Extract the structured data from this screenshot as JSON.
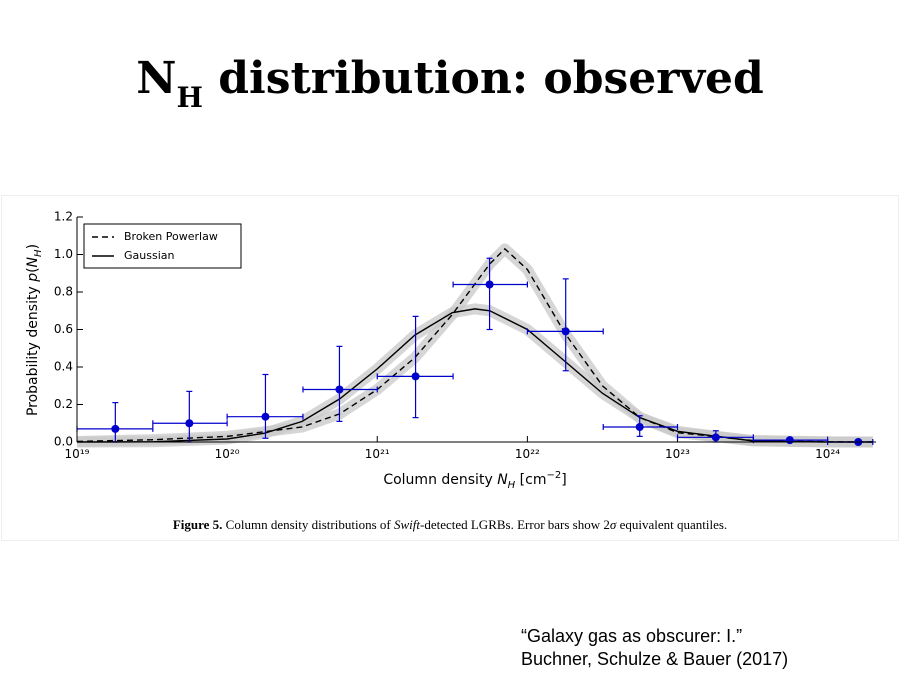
{
  "slide": {
    "title": [
      "N",
      "H",
      " distribution: observed"
    ],
    "citation": [
      "“Galaxy gas as obscurer: I.”",
      "Buchner, Schulze & Bauer (2017)"
    ],
    "caption": [
      "Figure 5.",
      " Column density distributions of ",
      "Swift",
      "-detected LGRBs. Error bars show 2",
      "σ",
      " equivalent quantiles."
    ]
  },
  "chart_data": {
    "type": "line",
    "xscale": "log",
    "xlabel": [
      "Column density ",
      "N",
      "H",
      " [cm",
      "−2",
      "]"
    ],
    "ylabel": [
      "Probability density ",
      "p",
      "(",
      "N",
      "H",
      ")"
    ],
    "xlim": [
      1e+19,
      2.1e+24
    ],
    "xticks": [
      {
        "value": 1e+19,
        "label": "10¹⁹"
      },
      {
        "value": 1e+20,
        "label": "10²⁰"
      },
      {
        "value": 1e+21,
        "label": "10²¹"
      },
      {
        "value": 1e+22,
        "label": "10²²"
      },
      {
        "value": 1e+23,
        "label": "10²³"
      },
      {
        "value": 1e+24,
        "label": "10²⁴"
      }
    ],
    "ylim": [
      0,
      1.2
    ],
    "yticks": [
      {
        "value": 0,
        "label": "0.0"
      },
      0.2,
      0.4,
      0.6,
      0.8,
      {
        "value": 1,
        "label": "1.0"
      },
      1.2
    ],
    "legend": "upper left",
    "band_color": "#c8c8c8",
    "series": [
      {
        "name": "Broken Powerlaw",
        "color": "#000000",
        "dashed": true,
        "x": [
          1e+19,
          3.16e+19,
          1e+20,
          3.16e+20,
          5.62e+20,
          1e+21,
          1.78e+21,
          3.16e+21,
          5.62e+21,
          7.08e+21,
          1e+22,
          1.78e+22,
          3.16e+22,
          5.62e+22,
          1e+23,
          3.16e+23,
          1e+24,
          2e+24
        ],
        "values": [
          0.003,
          0.012,
          0.03,
          0.08,
          0.15,
          0.28,
          0.45,
          0.68,
          0.95,
          1.03,
          0.92,
          0.58,
          0.3,
          0.13,
          0.05,
          0.008,
          0.001,
          0
        ]
      },
      {
        "name": "Gaussian",
        "color": "#000000",
        "dashed": false,
        "x": [
          1e+19,
          3.16e+19,
          1e+20,
          1.78e+20,
          3.16e+20,
          5.62e+20,
          1e+21,
          1.78e+21,
          3.16e+21,
          4.47e+21,
          5.62e+21,
          1e+22,
          1.78e+22,
          3.16e+22,
          5.62e+22,
          1e+23,
          3.16e+23,
          1e+24,
          2e+24
        ],
        "values": [
          0,
          0.001,
          0.016,
          0.047,
          0.11,
          0.23,
          0.39,
          0.57,
          0.69,
          0.71,
          0.7,
          0.6,
          0.43,
          0.26,
          0.13,
          0.057,
          0.006,
          0,
          0
        ]
      }
    ],
    "points": {
      "color": "#0000cc",
      "x": [
        1.8e+19,
        5.6e+19,
        1.8e+20,
        5.6e+20,
        1.8e+21,
        5.6e+21,
        1.8e+22,
        5.6e+22,
        1.8e+23,
        5.6e+23,
        1.6e+24
      ],
      "values": [
        0.07,
        0.1,
        0.135,
        0.28,
        0.35,
        0.84,
        0.59,
        0.08,
        0.025,
        0.01,
        0
      ],
      "x_low": [
        1e+19,
        3.2e+19,
        1e+20,
        3.2e+20,
        1e+21,
        3.2e+21,
        1e+22,
        3.2e+22,
        1e+23,
        3.2e+23,
        1e+24
      ],
      "x_high": [
        3.2e+19,
        1e+20,
        3.2e+20,
        1e+21,
        3.2e+21,
        1e+22,
        3.2e+22,
        1e+23,
        3.2e+23,
        1e+24,
        2e+24
      ],
      "y_low": [
        0,
        0,
        0.02,
        0.11,
        0.13,
        0.6,
        0.38,
        0.03,
        0,
        0,
        0
      ],
      "y_high": [
        0.21,
        0.27,
        0.36,
        0.51,
        0.67,
        0.98,
        0.87,
        0.14,
        0.06,
        0.02,
        0.01
      ]
    }
  }
}
